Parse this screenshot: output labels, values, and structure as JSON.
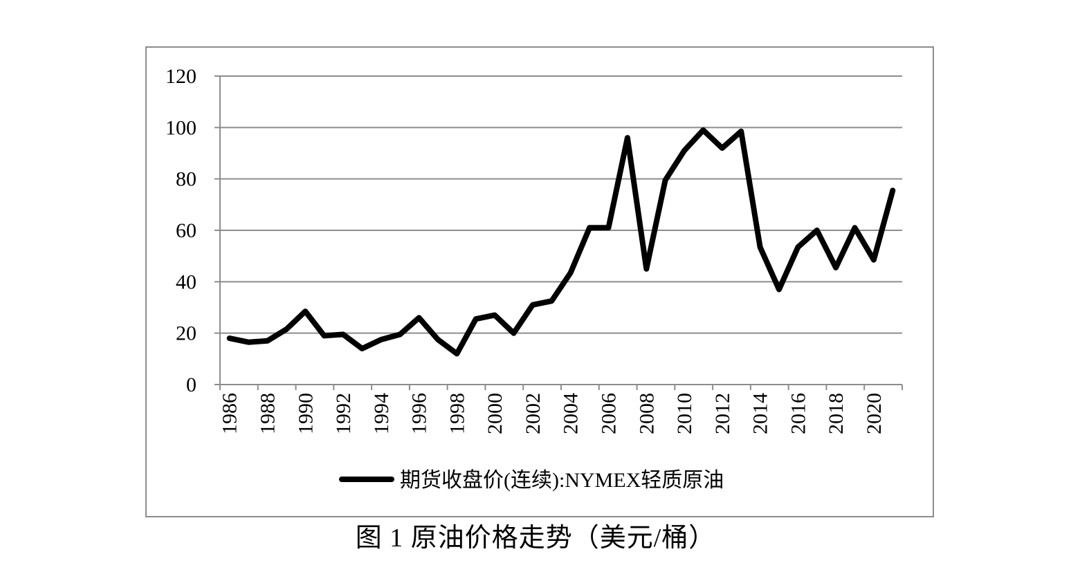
{
  "caption": "图 1 原油价格走势（美元/桶）",
  "chart_data": {
    "type": "line",
    "ylim": [
      0,
      120
    ],
    "y_ticks": [
      "0",
      "20",
      "40",
      "60",
      "80",
      "100",
      "120"
    ],
    "x_tick_labels": [
      "1986",
      "1988",
      "1990",
      "1992",
      "1994",
      "1996",
      "1998",
      "2000",
      "2002",
      "2004",
      "2006",
      "2008",
      "2010",
      "2012",
      "2014",
      "2016",
      "2018",
      "2020"
    ],
    "legend_position": "bottom",
    "grid": true,
    "colors": {
      "line": "#000000",
      "grid": "#8c8c8c",
      "frame": "#8c8c8c"
    },
    "series": [
      {
        "name": "期货收盘价(连续):NYMEX轻质原油",
        "x": [
          1986,
          1987,
          1988,
          1989,
          1990,
          1991,
          1992,
          1993,
          1994,
          1995,
          1996,
          1997,
          1998,
          1999,
          2000,
          2001,
          2002,
          2003,
          2004,
          2005,
          2006,
          2007,
          2008,
          2009,
          2010,
          2011,
          2012,
          2013,
          2014,
          2015,
          2016,
          2017,
          2018,
          2019,
          2020,
          2021
        ],
        "values": [
          18,
          16.5,
          17,
          21.5,
          28.5,
          19,
          19.5,
          14,
          17.5,
          19.5,
          26,
          17.5,
          12,
          25.5,
          27,
          20,
          31,
          32.5,
          43.5,
          61,
          61,
          96,
          45,
          79.5,
          91,
          99,
          92,
          98.5,
          53.5,
          37,
          53.5,
          60,
          45.5,
          61,
          48.5,
          75.5
        ]
      }
    ]
  }
}
